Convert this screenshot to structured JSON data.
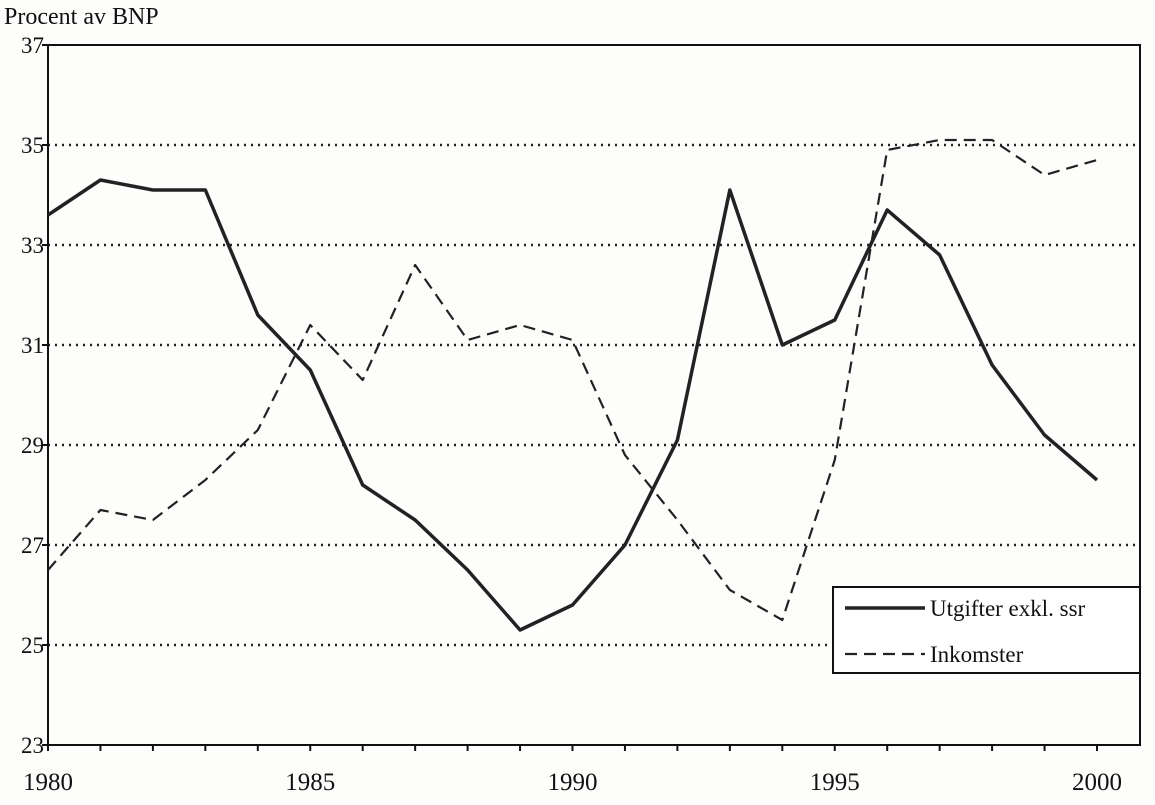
{
  "chart_data": {
    "type": "line",
    "title": "",
    "ylabel": "Procent av BNP",
    "xlabel": "",
    "x": [
      1980,
      1981,
      1982,
      1983,
      1984,
      1985,
      1986,
      1987,
      1988,
      1989,
      1990,
      1991,
      1992,
      1993,
      1994,
      1995,
      1996,
      1997,
      1998,
      1999,
      2000
    ],
    "xlim": [
      1980,
      2001
    ],
    "ylim": [
      23,
      37
    ],
    "xticks": [
      1980,
      1985,
      1990,
      1995,
      2000
    ],
    "yticks": [
      23,
      25,
      27,
      29,
      31,
      33,
      35,
      37
    ],
    "grid": "horizontal dotted",
    "legend_position": "bottom-right",
    "series": [
      {
        "name": "Utgifter exkl. ssr",
        "style": "solid",
        "values": [
          33.6,
          34.3,
          34.1,
          34.1,
          31.6,
          30.5,
          28.2,
          27.5,
          26.5,
          25.3,
          25.8,
          27.0,
          29.1,
          34.1,
          31.0,
          31.5,
          33.7,
          32.8,
          30.6,
          29.2,
          28.3
        ]
      },
      {
        "name": "Inkomster",
        "style": "dashed",
        "values": [
          26.5,
          27.7,
          27.5,
          28.3,
          29.3,
          31.4,
          30.3,
          32.6,
          31.1,
          31.4,
          31.1,
          28.8,
          27.5,
          26.1,
          25.5,
          28.7,
          34.9,
          35.1,
          35.1,
          34.4,
          34.7
        ]
      }
    ]
  }
}
